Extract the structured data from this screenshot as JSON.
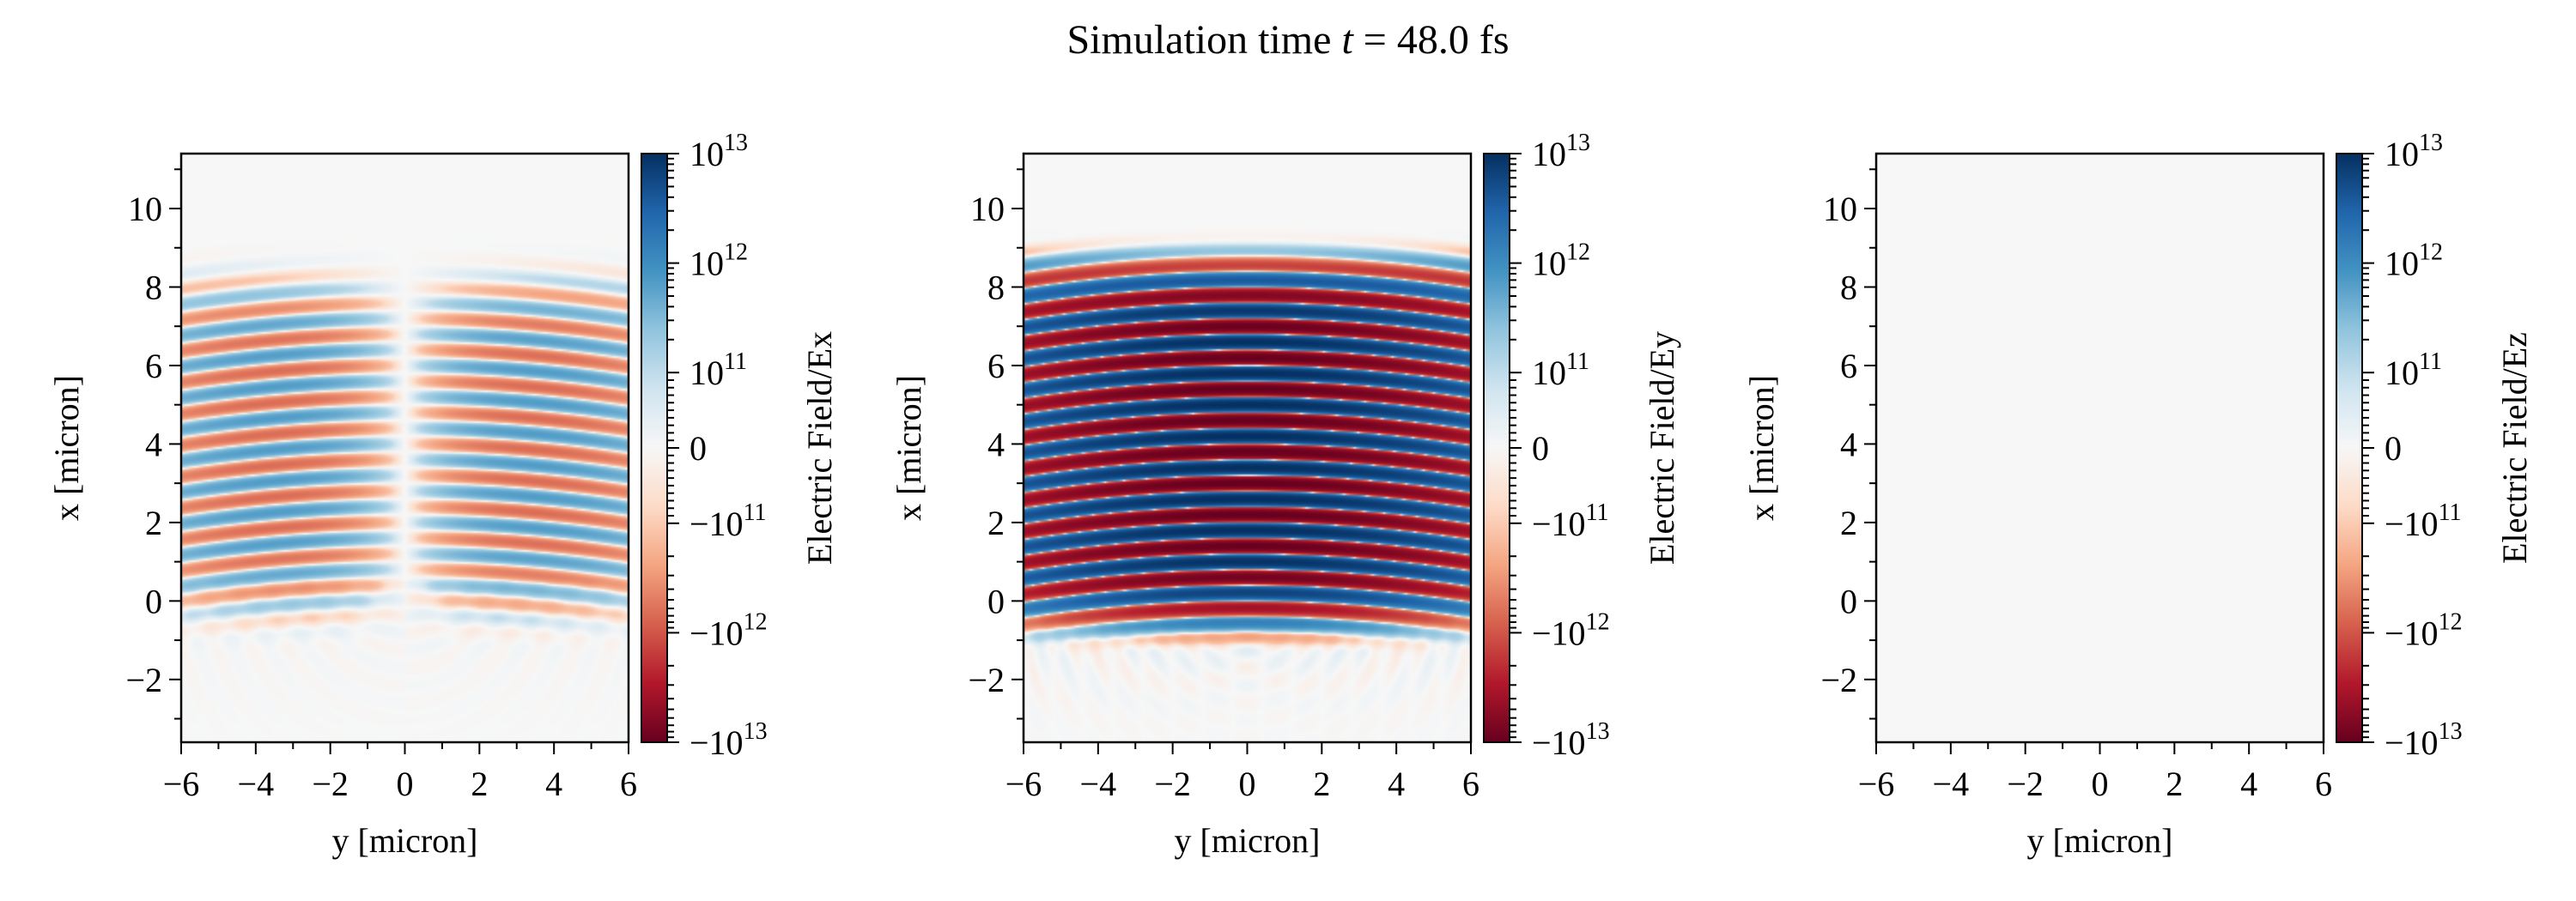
{
  "figure": {
    "title_prefix": "Simulation time ",
    "title_var": "t",
    "title_suffix": " = 48.0 fs"
  },
  "chart_data": [
    {
      "type": "heatmap",
      "field": "Ex",
      "xlabel": "y [micron]",
      "ylabel": "x [micron]",
      "xlim": [
        -6,
        6
      ],
      "ylim": [
        -3.6,
        11.4
      ],
      "xticks": [
        -6,
        -4,
        -2,
        0,
        2,
        4,
        6
      ],
      "xtick_labels": [
        "−6",
        "−4",
        "−2",
        "0",
        "2",
        "4",
        "6"
      ],
      "yticks": [
        -2,
        0,
        2,
        4,
        6,
        8,
        10
      ],
      "ytick_labels": [
        "−2",
        "0",
        "2",
        "4",
        "6",
        "8",
        "10"
      ],
      "colormap": "RdBu",
      "colorbar": {
        "label": "Electric Field/Ex",
        "norm": "symlog",
        "range": [
          -10000000000000.0,
          10000000000000.0
        ],
        "ticks": [
          -10000000000000.0,
          -1000000000000.0,
          -100000000000.0,
          0,
          100000000000.0,
          1000000000000.0,
          10000000000000.0
        ],
        "tick_labels": [
          [
            "−10",
            "13"
          ],
          [
            "−10",
            "12"
          ],
          [
            "−10",
            "11"
          ],
          [
            "0",
            ""
          ],
          [
            "10",
            "11"
          ],
          [
            "10",
            "12"
          ],
          [
            "10",
            "13"
          ]
        ]
      }
    },
    {
      "type": "heatmap",
      "field": "Ey",
      "xlabel": "y [micron]",
      "ylabel": "x [micron]",
      "xlim": [
        -6,
        6
      ],
      "ylim": [
        -3.6,
        11.4
      ],
      "xticks": [
        -6,
        -4,
        -2,
        0,
        2,
        4,
        6
      ],
      "xtick_labels": [
        "−6",
        "−4",
        "−2",
        "0",
        "2",
        "4",
        "6"
      ],
      "yticks": [
        -2,
        0,
        2,
        4,
        6,
        8,
        10
      ],
      "ytick_labels": [
        "−2",
        "0",
        "2",
        "4",
        "6",
        "8",
        "10"
      ],
      "colormap": "RdBu",
      "colorbar": {
        "label": "Electric Field/Ey",
        "norm": "symlog",
        "range": [
          -10000000000000.0,
          10000000000000.0
        ],
        "ticks": [
          -10000000000000.0,
          -1000000000000.0,
          -100000000000.0,
          0,
          100000000000.0,
          1000000000000.0,
          10000000000000.0
        ],
        "tick_labels": [
          [
            "−10",
            "13"
          ],
          [
            "−10",
            "12"
          ],
          [
            "−10",
            "11"
          ],
          [
            "0",
            ""
          ],
          [
            "10",
            "11"
          ],
          [
            "10",
            "12"
          ],
          [
            "10",
            "13"
          ]
        ]
      }
    },
    {
      "type": "heatmap",
      "field": "Ez",
      "xlabel": "y [micron]",
      "ylabel": "x [micron]",
      "xlim": [
        -6,
        6
      ],
      "ylim": [
        -3.6,
        11.4
      ],
      "xticks": [
        -6,
        -4,
        -2,
        0,
        2,
        4,
        6
      ],
      "xtick_labels": [
        "−6",
        "−4",
        "−2",
        "0",
        "2",
        "4",
        "6"
      ],
      "yticks": [
        -2,
        0,
        2,
        4,
        6,
        8,
        10
      ],
      "ytick_labels": [
        "−2",
        "0",
        "2",
        "4",
        "6",
        "8",
        "10"
      ],
      "colormap": "RdBu",
      "colorbar": {
        "label": "Electric Field/Ez",
        "norm": "symlog",
        "range": [
          -10000000000000.0,
          10000000000000.0
        ],
        "ticks": [
          -10000000000000.0,
          -1000000000000.0,
          -100000000000.0,
          0,
          100000000000.0,
          1000000000000.0,
          10000000000000.0
        ],
        "tick_labels": [
          [
            "−10",
            "13"
          ],
          [
            "−10",
            "12"
          ],
          [
            "−10",
            "11"
          ],
          [
            "0",
            ""
          ],
          [
            "10",
            "11"
          ],
          [
            "10",
            "12"
          ],
          [
            "10",
            "13"
          ]
        ]
      }
    }
  ],
  "colors": {
    "rdbu": [
      "#67001f",
      "#b2182b",
      "#d6604d",
      "#f4a582",
      "#fddbc7",
      "#f7f7f7",
      "#d1e5f0",
      "#92c5de",
      "#4393c3",
      "#2166ac",
      "#053061"
    ]
  }
}
